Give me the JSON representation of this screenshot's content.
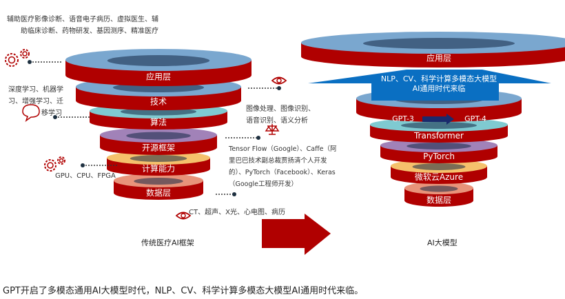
{
  "left_stack": {
    "title": "传统医疗AI框架",
    "layers": [
      {
        "label": "应用层",
        "top_color": "#7aa7cf"
      },
      {
        "label": "技术",
        "top_color": "#7aa7cf"
      },
      {
        "label": "算法",
        "top_color": "#7fcad1"
      },
      {
        "label": "开源框架",
        "top_color": "#a182b8"
      },
      {
        "label": "计算能力",
        "top_color": "#f5c16c"
      },
      {
        "label": "数据层",
        "top_color": "#e8937a"
      }
    ]
  },
  "right_stack": {
    "title": "AI大模型",
    "layers": [
      {
        "label": "应用层",
        "top_color": "#7aa7cf"
      },
      {
        "label": "GPT-3",
        "label2": "GPT-4",
        "top_color": "#7aa7cf"
      },
      {
        "label": "Transformer",
        "top_color": "#7fcad1"
      },
      {
        "label": "PyTorch",
        "top_color": "#a182b8"
      },
      {
        "label": "微软云Azure",
        "top_color": "#f5c16c"
      },
      {
        "label": "数据层",
        "top_color": "#e8937a"
      }
    ],
    "banner": [
      "NLP、CV、科学计算多模态大模型",
      "AI通用时代来临"
    ]
  },
  "annotations": {
    "applications": [
      "辅助医疗影像诊断、语音电子病历、虚拟医生、辅",
      "助临床诊断、药物研发、基因测序、精准医疗"
    ],
    "learning": [
      "深度学习、机器学",
      "习、增强学习、迁",
      "移学习"
    ],
    "recognition": [
      "图像处理、图像识别、",
      "语音识别、语义分析"
    ],
    "frameworks": [
      "Tensor Flow（Google）、Caffe（阿",
      "里巴巴技术副总裁贾扬清个人开发",
      "的）、PyTorch（Facebook）、Keras",
      "（Google工程师开发）"
    ],
    "hardware": "GPU、CPU、FPGA",
    "data": "CT、超声、X光、心电图、病历"
  },
  "caption": "GPT开启了多模态通用AI大模型时代，NLP、CV、科学计算多模态大模型AI通用时代来临。",
  "colors": {
    "red": "#b00000",
    "blue": "#0a6fc2",
    "navy": "#1a2a6c"
  }
}
